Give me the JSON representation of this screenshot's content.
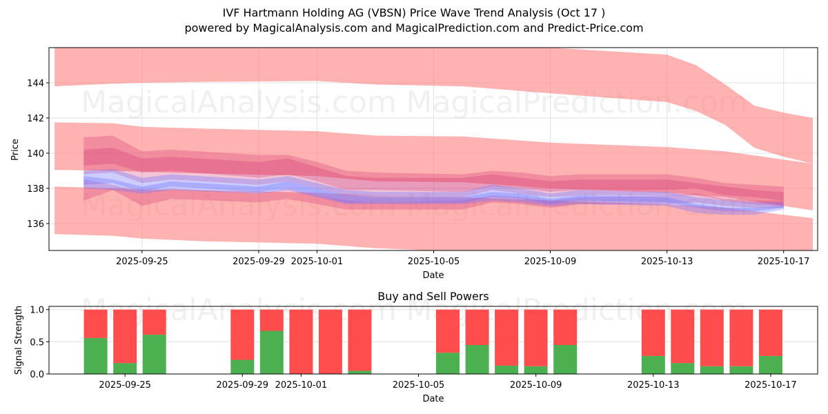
{
  "header": {
    "title": "IVF Hartmann Holding AG (VBSN) Price Wave Trend Analysis (Oct 17 )",
    "subtitle": "powered by MagicalAnalysis.com and MagicalPrediction.com and Predict-Price.com"
  },
  "watermarks": [
    "MagicalAnalysis.com",
    "MagicalPrediction.com"
  ],
  "colors": {
    "band": "#ff7f7f",
    "blue": "#6f6fff",
    "red": "#d03070",
    "buy": "#4caf50",
    "sell": "#ff4c4c",
    "grid": "#e0e0e0"
  },
  "chart_data": [
    {
      "type": "area",
      "title": "",
      "xlabel": "Date",
      "ylabel": "Price",
      "ylim": [
        134.47,
        146.0
      ],
      "xlim": [
        "2025-09-21T19:25",
        "2025-10-18T04:00"
      ],
      "grid": true,
      "yticks": [
        136,
        138,
        140,
        142,
        144
      ],
      "xticks": [
        "2025-09-25",
        "2025-09-29",
        "2025-10-01",
        "2025-10-05",
        "2025-10-09",
        "2025-10-13",
        "2025-10-17"
      ],
      "bands": [
        {
          "name": "upper-wave-band",
          "x": [
            "2025-09-22",
            "2025-09-24",
            "2025-09-25",
            "2025-09-27",
            "2025-10-01",
            "2025-10-03",
            "2025-10-06",
            "2025-10-09",
            "2025-10-13",
            "2025-10-14",
            "2025-10-15",
            "2025-10-16",
            "2025-10-17",
            "2025-10-18"
          ],
          "upper": [
            146.2,
            146.2,
            146.2,
            146.2,
            146.2,
            146.2,
            146.2,
            146.0,
            145.6,
            145.0,
            143.9,
            142.7,
            142.3,
            142.0
          ],
          "lower": [
            143.8,
            143.95,
            144.0,
            144.05,
            144.1,
            143.9,
            143.8,
            143.4,
            142.9,
            142.4,
            141.6,
            140.3,
            139.8,
            139.4
          ]
        },
        {
          "name": "middle-wave-band",
          "x": [
            "2025-09-22",
            "2025-09-24",
            "2025-09-25",
            "2025-09-27",
            "2025-10-01",
            "2025-10-03",
            "2025-10-06",
            "2025-10-09",
            "2025-10-13",
            "2025-10-15",
            "2025-10-18"
          ],
          "upper": [
            141.75,
            141.7,
            141.5,
            141.4,
            141.25,
            141.0,
            140.95,
            140.6,
            140.35,
            140.1,
            139.4
          ],
          "lower": [
            139.05,
            139.0,
            138.95,
            138.85,
            138.7,
            138.4,
            138.35,
            138.0,
            137.75,
            137.5,
            136.75
          ]
        },
        {
          "name": "lower-wave-band",
          "x": [
            "2025-09-22",
            "2025-09-24",
            "2025-09-25",
            "2025-09-27",
            "2025-10-01",
            "2025-10-03",
            "2025-10-06",
            "2025-10-09",
            "2025-10-13",
            "2025-10-15",
            "2025-10-18"
          ],
          "upper": [
            138.1,
            138.0,
            137.95,
            137.9,
            137.75,
            137.6,
            137.5,
            137.3,
            137.1,
            136.9,
            136.3
          ],
          "lower": [
            135.4,
            135.3,
            135.15,
            135.0,
            134.85,
            134.6,
            134.4,
            134.3,
            134.2,
            134.2,
            134.1
          ]
        }
      ],
      "wave_series": {
        "x": [
          "2025-09-23",
          "2025-09-24",
          "2025-09-25",
          "2025-09-26",
          "2025-09-29",
          "2025-09-30",
          "2025-10-01",
          "2025-10-02",
          "2025-10-03",
          "2025-10-06",
          "2025-10-07",
          "2025-10-08",
          "2025-10-09",
          "2025-10-10",
          "2025-10-13",
          "2025-10-14",
          "2025-10-15",
          "2025-10-16",
          "2025-10-17"
        ],
        "red_waves": [
          {
            "upper": [
              140.9,
              141.0,
              140.1,
              140.2,
              139.9,
              139.9,
              139.5,
              139.0,
              138.9,
              138.8,
              139.0,
              138.9,
              138.7,
              138.8,
              138.8,
              138.6,
              138.3,
              138.2,
              138.1
            ],
            "lower": [
              139.3,
              139.4,
              138.9,
              139.0,
              138.6,
              138.8,
              138.4,
              137.9,
              137.9,
              137.8,
              138.1,
              138.0,
              137.8,
              137.9,
              137.9,
              138.0,
              137.6,
              137.5,
              137.3
            ]
          },
          {
            "upper": [
              140.2,
              140.3,
              139.7,
              139.8,
              139.5,
              139.7,
              139.2,
              138.7,
              138.6,
              138.6,
              138.8,
              138.6,
              138.4,
              138.5,
              138.5,
              138.3,
              138.1,
              137.9,
              137.8
            ],
            "lower": [
              138.8,
              138.9,
              138.3,
              138.5,
              138.2,
              138.4,
              138.0,
              137.6,
              137.6,
              137.5,
              137.9,
              137.7,
              137.5,
              137.6,
              137.6,
              137.6,
              137.3,
              137.1,
              137.0
            ]
          },
          {
            "upper": [
              138.5,
              138.2,
              137.8,
              138.0,
              137.7,
              138.0,
              137.6,
              137.3,
              137.2,
              137.3,
              137.6,
              137.5,
              137.3,
              137.5,
              137.6,
              137.7,
              137.4,
              137.3,
              137.3
            ],
            "lower": [
              137.3,
              137.9,
              137.0,
              137.4,
              137.2,
              137.4,
              137.1,
              136.8,
              136.8,
              136.8,
              137.2,
              137.1,
              136.9,
              137.1,
              137.1,
              137.2,
              137.0,
              136.9,
              136.9
            ]
          }
        ],
        "blue_waves": [
          {
            "upper": [
              139.0,
              139.1,
              138.6,
              138.8,
              138.5,
              138.7,
              138.3,
              137.9,
              137.8,
              137.8,
              138.2,
              138.0,
              137.7,
              137.9,
              137.8,
              137.5,
              137.3,
              137.2,
              137.2
            ],
            "lower": [
              138.2,
              138.3,
              137.8,
              138.1,
              137.8,
              138.0,
              137.6,
              137.2,
              137.2,
              137.2,
              137.5,
              137.4,
              137.1,
              137.3,
              137.2,
              136.9,
              136.7,
              136.7,
              136.9
            ]
          },
          {
            "upper": [
              138.7,
              138.5,
              138.1,
              138.4,
              138.1,
              138.4,
              138.0,
              137.6,
              137.5,
              137.5,
              137.8,
              137.7,
              137.4,
              137.6,
              137.5,
              137.1,
              136.9,
              136.9,
              137.0
            ],
            "lower": [
              138.0,
              137.9,
              137.7,
              137.9,
              137.7,
              137.9,
              137.5,
              137.1,
              137.1,
              137.1,
              137.3,
              137.2,
              137.0,
              137.1,
              137.0,
              136.6,
              136.5,
              136.5,
              136.8
            ]
          }
        ]
      }
    },
    {
      "type": "bar",
      "title": "Buy and Sell Powers",
      "xlabel": "Date",
      "ylabel": "Signal Strength",
      "ylim": [
        0,
        1.05
      ],
      "xlim": [
        "2025-09-22T09:50",
        "2025-10-18T14:25"
      ],
      "grid": true,
      "yticks": [
        0.0,
        0.5,
        1.0
      ],
      "ytick_labels": [
        "0.0",
        "0.5",
        "1.0"
      ],
      "xticks": [
        "2025-09-25",
        "2025-09-29",
        "2025-10-01",
        "2025-10-05",
        "2025-10-09",
        "2025-10-13",
        "2025-10-17"
      ],
      "categories": [
        "2025-09-24",
        "2025-09-25",
        "2025-09-26",
        "2025-09-29",
        "2025-09-30",
        "2025-10-01",
        "2025-10-02",
        "2025-10-03",
        "2025-10-06",
        "2025-10-07",
        "2025-10-08",
        "2025-10-09",
        "2025-10-10",
        "2025-10-13",
        "2025-10-14",
        "2025-10-15",
        "2025-10-16",
        "2025-10-17"
      ],
      "series": [
        {
          "name": "Buy",
          "values": [
            0.56,
            0.17,
            0.61,
            0.22,
            0.67,
            0.0,
            0.0,
            0.05,
            0.33,
            0.45,
            0.13,
            0.12,
            0.45,
            0.28,
            0.17,
            0.12,
            0.12,
            0.28
          ]
        },
        {
          "name": "Sell",
          "values": [
            0.44,
            0.83,
            0.39,
            0.78,
            0.33,
            1.0,
            1.0,
            0.95,
            0.67,
            0.55,
            0.87,
            0.88,
            0.55,
            0.72,
            0.83,
            0.88,
            0.88,
            0.72
          ]
        }
      ]
    }
  ]
}
